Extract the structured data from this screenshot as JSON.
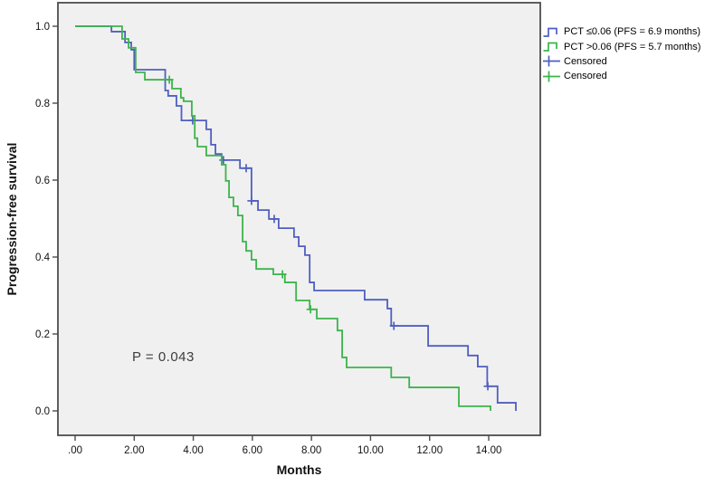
{
  "figure": {
    "y_axis_label": "Progression-free survival",
    "x_axis_label": "Months",
    "p_value_label": "P = 0.043"
  },
  "legend": {
    "items": [
      {
        "label": "PCT ≤0.06 (PFS = 6.9 months)",
        "color": "#4f5fc0",
        "type": "step-line"
      },
      {
        "label": "PCT >0.06 (PFS = 5.7 months)",
        "color": "#3cb44b",
        "type": "step-line"
      },
      {
        "label": "Censored",
        "color": "#4f5fc0",
        "type": "plus"
      },
      {
        "label": "Censored",
        "color": "#3cb44b",
        "type": "plus"
      }
    ]
  },
  "chart_data": {
    "type": "line",
    "subtype": "kaplan-meier-step",
    "title": "",
    "xlabel": "Months",
    "ylabel": "Progression-free survival",
    "xlim": [
      -0.6,
      15.8
    ],
    "ylim": [
      -0.06,
      1.06
    ],
    "grid": false,
    "legend_position": "top-right-outside",
    "x_ticks": [
      0,
      2,
      4,
      6,
      8,
      10,
      12,
      14
    ],
    "x_tick_labels": [
      ".00",
      "2.00",
      "4.00",
      "6.00",
      "8.00",
      "10.00",
      "12.00",
      "14.00"
    ],
    "y_ticks": [
      0.0,
      0.2,
      0.4,
      0.6,
      0.8,
      1.0
    ],
    "y_tick_labels": [
      "0.0",
      "0.2",
      "0.4",
      "0.6",
      "0.8",
      "1.0"
    ],
    "annotation": {
      "text": "P = 0.043",
      "x": 3.2,
      "y": 0.14
    },
    "series": [
      {
        "name": "PCT ≤0.06 (PFS = 6.9 months)",
        "color": "#4f5fc0",
        "median_pfs_months": 6.9,
        "steps": [
          [
            0,
            1.0
          ],
          [
            1.23,
            0.986
          ],
          [
            1.69,
            0.958
          ],
          [
            1.9,
            0.939
          ],
          [
            2.0,
            0.887
          ],
          [
            3.05,
            0.833
          ],
          [
            3.15,
            0.819
          ],
          [
            3.43,
            0.793
          ],
          [
            3.6,
            0.755
          ],
          [
            4.44,
            0.732
          ],
          [
            4.6,
            0.692
          ],
          [
            4.75,
            0.668
          ],
          [
            4.96,
            0.652
          ],
          [
            5.58,
            0.631
          ],
          [
            5.97,
            0.546
          ],
          [
            6.19,
            0.522
          ],
          [
            6.56,
            0.499
          ],
          [
            6.89,
            0.475
          ],
          [
            7.41,
            0.452
          ],
          [
            7.57,
            0.428
          ],
          [
            7.78,
            0.405
          ],
          [
            7.94,
            0.334
          ],
          [
            8.09,
            0.313
          ],
          [
            9.8,
            0.289
          ],
          [
            10.57,
            0.266
          ],
          [
            10.7,
            0.221
          ],
          [
            11.95,
            0.169
          ],
          [
            13.3,
            0.144
          ],
          [
            13.63,
            0.115
          ],
          [
            13.95,
            0.064
          ],
          [
            14.3,
            0.021
          ],
          [
            14.92,
            0.0
          ]
        ],
        "censored": [
          [
            3.98,
            0.755
          ],
          [
            5.02,
            0.652
          ],
          [
            5.79,
            0.631
          ],
          [
            5.97,
            0.546
          ],
          [
            6.74,
            0.499
          ],
          [
            10.79,
            0.221
          ],
          [
            13.97,
            0.064
          ]
        ]
      },
      {
        "name": "PCT >0.06 (PFS = 5.7 months)",
        "color": "#3cb44b",
        "median_pfs_months": 5.7,
        "steps": [
          [
            0,
            1.0
          ],
          [
            1.59,
            0.967
          ],
          [
            1.81,
            0.944
          ],
          [
            2.05,
            0.88
          ],
          [
            2.36,
            0.861
          ],
          [
            3.28,
            0.838
          ],
          [
            3.58,
            0.814
          ],
          [
            3.67,
            0.805
          ],
          [
            3.95,
            0.767
          ],
          [
            4.05,
            0.709
          ],
          [
            4.14,
            0.687
          ],
          [
            4.44,
            0.664
          ],
          [
            4.96,
            0.64
          ],
          [
            5.1,
            0.598
          ],
          [
            5.21,
            0.555
          ],
          [
            5.36,
            0.532
          ],
          [
            5.51,
            0.508
          ],
          [
            5.67,
            0.44
          ],
          [
            5.79,
            0.416
          ],
          [
            5.97,
            0.393
          ],
          [
            6.13,
            0.369
          ],
          [
            6.71,
            0.355
          ],
          [
            7.1,
            0.334
          ],
          [
            7.48,
            0.287
          ],
          [
            7.94,
            0.264
          ],
          [
            8.18,
            0.24
          ],
          [
            8.88,
            0.209
          ],
          [
            9.04,
            0.139
          ],
          [
            9.19,
            0.113
          ],
          [
            10.7,
            0.087
          ],
          [
            11.31,
            0.061
          ],
          [
            12.99,
            0.012
          ],
          [
            14.06,
            0.0
          ]
        ],
        "censored": [
          [
            3.19,
            0.861
          ],
          [
            7.02,
            0.355
          ],
          [
            7.97,
            0.264
          ]
        ]
      }
    ]
  }
}
